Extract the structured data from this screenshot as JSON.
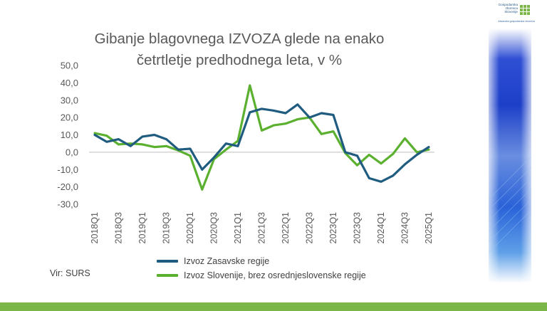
{
  "title_line1": "Gibanje blagovnega IZVOZA glede na enako",
  "title_line2": "četrtletje predhodnega leta, v %",
  "source": "Vir: SURS",
  "logo": {
    "line1": "Gospodarska",
    "line2": "zbornica",
    "line3": "Slovenije",
    "tagline": "Zasavska gospodarska zbornica"
  },
  "colors": {
    "series1": "#1f5c80",
    "series2": "#5bb030",
    "text": "#595959",
    "bar": "#7ab648"
  },
  "chart_data": {
    "type": "line",
    "x": [
      "2018Q1",
      "2018Q2",
      "2018Q3",
      "2018Q4",
      "2019Q1",
      "2019Q2",
      "2019Q3",
      "2019Q4",
      "2020Q1",
      "2020Q2",
      "2020Q3",
      "2020Q4",
      "2021Q1",
      "2021Q2",
      "2021Q3",
      "2021Q4",
      "2022Q1",
      "2022Q2",
      "2022Q3",
      "2022Q4",
      "2023Q1",
      "2023Q2",
      "2023Q3",
      "2023Q4",
      "2024Q1",
      "2024Q2",
      "2024Q3",
      "2024Q4",
      "2025Q1"
    ],
    "xtick_labels": [
      "2018Q1",
      "2018Q3",
      "2019Q1",
      "2019Q3",
      "2020Q1",
      "2020Q3",
      "2021Q1",
      "2021Q3",
      "2022Q1",
      "2022Q3",
      "2023Q1",
      "2023Q3",
      "2024Q1",
      "2024Q3",
      "2025Q1"
    ],
    "yticks": [
      "50,0",
      "40,0",
      "30,0",
      "20,0",
      "10,0",
      "0,0",
      "-10,0",
      "-20,0",
      "-30,0"
    ],
    "ylim": [
      -30,
      50
    ],
    "series": [
      {
        "name": "Izvoz Zasavske regije",
        "values": [
          10,
          6,
          7.5,
          3.5,
          9,
          10,
          7.5,
          1.5,
          2,
          -10,
          -3,
          5,
          3.5,
          23,
          25,
          24,
          22.5,
          27.5,
          20,
          22.5,
          21.5,
          0,
          -2,
          -15,
          -17,
          -13.5,
          -7,
          -1.5,
          3
        ]
      },
      {
        "name": "Izvoz Slovenije, brez osrednjeslovenske regije",
        "values": [
          11,
          9.5,
          4.5,
          5,
          4.5,
          3,
          3.5,
          1,
          -2,
          -21.5,
          -4,
          1.5,
          6.5,
          38.5,
          12.5,
          15.5,
          16.5,
          19,
          20,
          10.5,
          12,
          -0.5,
          -7.5,
          -1.5,
          -6.5,
          -1,
          8,
          0,
          1.5
        ]
      }
    ]
  }
}
